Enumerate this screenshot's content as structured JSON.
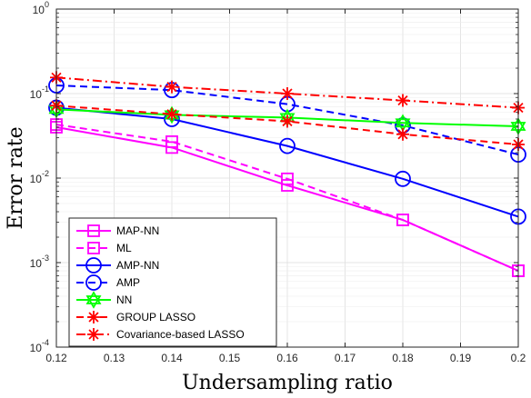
{
  "chart_data": {
    "type": "line",
    "xlabel": "Undersampling ratio",
    "ylabel": "Error rate",
    "y_scale": "log",
    "xlim": [
      0.12,
      0.2
    ],
    "ylim": [
      0.0001,
      1
    ],
    "grid": true,
    "legend_position": "bottom-left",
    "x_ticks": [
      "0.12",
      "0.13",
      "0.14",
      "0.15",
      "0.16",
      "0.17",
      "0.18",
      "0.19",
      "0.2"
    ],
    "x_tick_values": [
      0.12,
      0.13,
      0.14,
      0.15,
      0.16,
      0.17,
      0.18,
      0.19,
      0.2
    ],
    "y_ticks": [
      {
        "base": "10",
        "exp": "0",
        "value": 1
      },
      {
        "base": "10",
        "exp": "-1",
        "value": 0.1
      },
      {
        "base": "10",
        "exp": "-2",
        "value": 0.01
      },
      {
        "base": "10",
        "exp": "-3",
        "value": 0.001
      },
      {
        "base": "10",
        "exp": "-4",
        "value": 0.0001
      }
    ],
    "x": [
      0.12,
      0.14,
      0.16,
      0.18,
      0.2
    ],
    "series": [
      {
        "name": "MAP-NN",
        "color": "#ff00ff",
        "dash": "solid",
        "marker": "square",
        "values": [
          0.04,
          0.023,
          0.0082,
          0.0032,
          0.0008
        ]
      },
      {
        "name": "ML",
        "color": "#ff00ff",
        "dash": "dashed",
        "marker": "square",
        "values": [
          0.043,
          0.027,
          0.0098,
          0.0032,
          0.0008
        ]
      },
      {
        "name": "AMP-NN",
        "color": "#0000ff",
        "dash": "solid",
        "marker": "circle",
        "values": [
          0.068,
          0.05,
          0.024,
          0.0098,
          0.0035
        ]
      },
      {
        "name": "AMP",
        "color": "#0000ff",
        "dash": "dashed",
        "marker": "circle",
        "values": [
          0.125,
          0.11,
          0.075,
          0.042,
          0.019
        ]
      },
      {
        "name": "NN",
        "color": "#00ff00",
        "dash": "solid",
        "marker": "hexagram",
        "values": [
          0.065,
          0.056,
          0.052,
          0.045,
          0.041
        ]
      },
      {
        "name": "GROUP LASSO",
        "color": "#ff0000",
        "dash": "dashed",
        "marker": "asterisk",
        "values": [
          0.072,
          0.057,
          0.047,
          0.033,
          0.025
        ]
      },
      {
        "name": "Covariance-based LASSO",
        "color": "#ff0000",
        "dash": "dashdot",
        "marker": "asterisk",
        "values": [
          0.155,
          0.12,
          0.1,
          0.083,
          0.068
        ]
      }
    ]
  }
}
